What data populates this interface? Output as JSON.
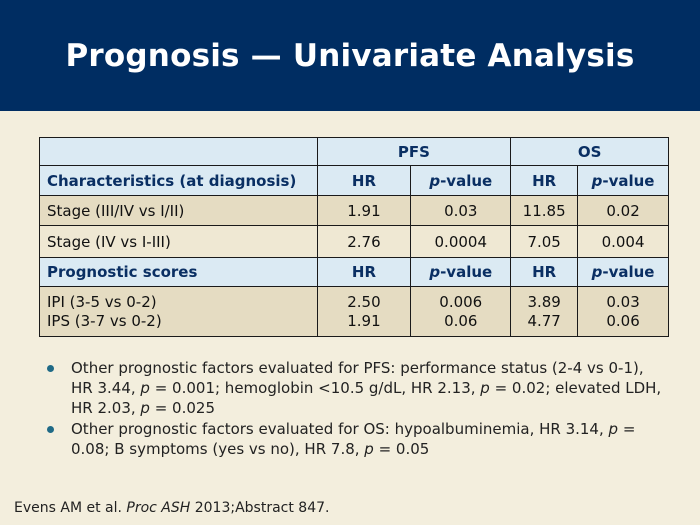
{
  "title": "Prognosis — Univariate Analysis",
  "table": {
    "group_pfs": "PFS",
    "group_os": "OS",
    "header1": {
      "col0": "Characteristics (at diagnosis)",
      "hr": "HR",
      "p_italic": "p",
      "p_rest": "-value"
    },
    "rows": [
      {
        "label": "Stage (III/IV vs I/II)",
        "pfs_hr": "1.91",
        "pfs_p": "0.03",
        "os_hr": "11.85",
        "os_p": "0.02"
      },
      {
        "label": "Stage (IV vs I-III)",
        "pfs_hr": "2.76",
        "pfs_p": "0.0004",
        "os_hr": "7.05",
        "os_p": "0.004"
      }
    ],
    "header2": {
      "col0": "Prognostic scores",
      "hr": "HR",
      "p_italic": "p",
      "p_rest": "-value"
    },
    "scores": [
      {
        "label": "IPI (3-5 vs 0-2)",
        "pfs_hr": "2.50",
        "pfs_p": "0.006",
        "os_hr": "3.89",
        "os_p": "0.03"
      },
      {
        "label": "IPS (3-7 vs 0-2)",
        "pfs_hr": "1.91",
        "pfs_p": "0.06",
        "os_hr": "4.77",
        "os_p": "0.06"
      }
    ]
  },
  "bullets": [
    {
      "a": "Other prognostic factors evaluated for PFS: performance status (2-4 vs 0-1), HR 3.44, ",
      "p1": "p",
      "b": " = 0.001; hemoglobin <10.5 g/dL, HR 2.13, ",
      "p2": "p",
      "c": " = 0.02; elevated LDH, HR 2.03, ",
      "p3": "p",
      "d": " = 0.025"
    },
    {
      "a": "Other prognostic factors evaluated for OS: hypoalbuminemia, HR 3.14, ",
      "p1": "p",
      "b": " = 0.08; B symptoms (yes vs no), HR 7.8, ",
      "p2": "p",
      "c": " = 0.05"
    }
  ],
  "reference": {
    "authors": "Evens AM et al. ",
    "journal": "Proc ASH",
    "rest": " 2013;Abstract 847."
  },
  "colors": {
    "title_bar": "#002d62",
    "background": "#f3eedd",
    "header_row": "#dbeaf3",
    "data_row": "#e5dcc2",
    "bullet": "#1f6a86"
  }
}
